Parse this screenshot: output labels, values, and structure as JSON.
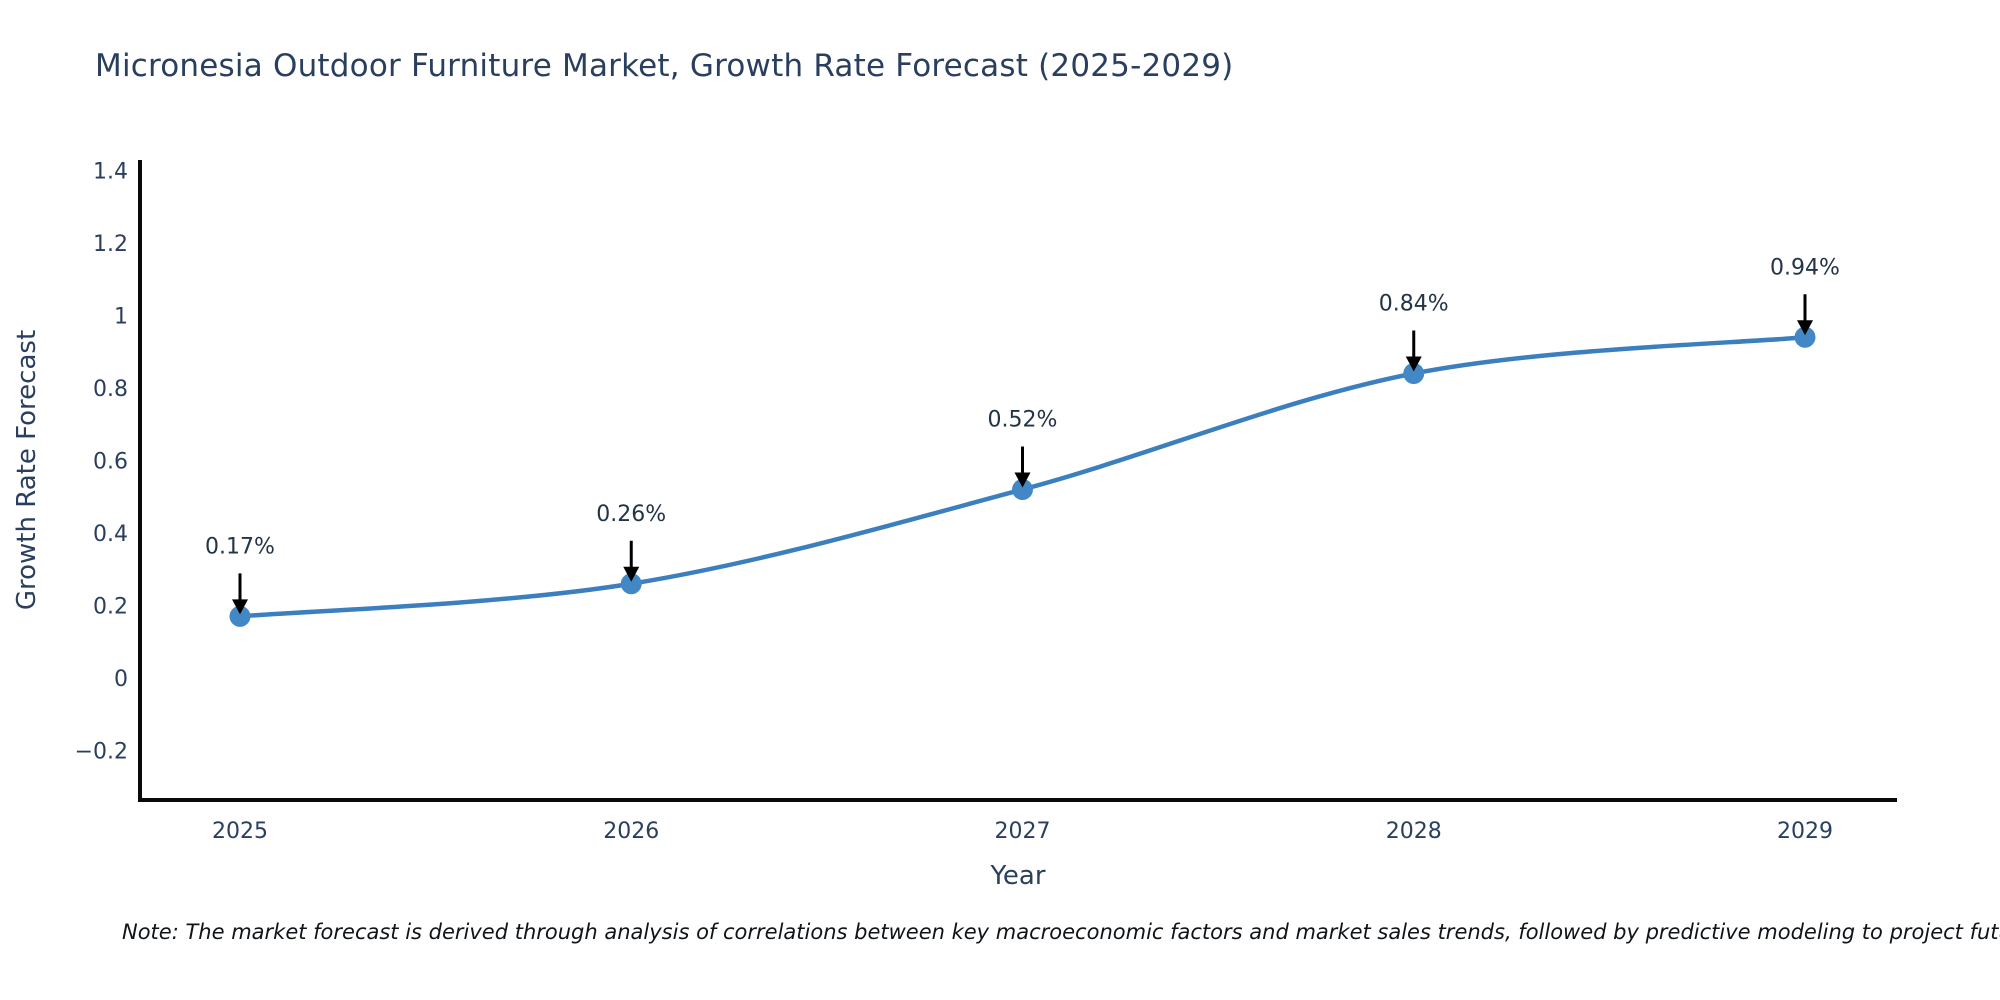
{
  "title": "Micronesia Outdoor Furniture Market, Growth Rate Forecast (2025-2029)",
  "note": "Note: The market forecast is derived through analysis of correlations between key macroeconomic factors and market sales trends, followed by predictive modeling to project future sa",
  "chart_data": {
    "type": "line",
    "title": "Micronesia Outdoor Furniture Market, Growth Rate Forecast (2025-2029)",
    "xlabel": "Year",
    "ylabel": "Growth Rate Forecast",
    "categories": [
      "2025",
      "2026",
      "2027",
      "2028",
      "2029"
    ],
    "series": [
      {
        "name": "Growth Rate Forecast",
        "values": [
          0.17,
          0.26,
          0.52,
          0.84,
          0.94
        ],
        "point_labels": [
          "0.17%",
          "0.26%",
          "0.52%",
          "0.84%",
          "0.94%"
        ]
      }
    ],
    "y_axis": {
      "tick_values": [
        -0.2,
        0,
        0.2,
        0.4,
        0.6,
        0.8,
        1,
        1.2,
        1.4
      ],
      "tick_labels": [
        "−0.2",
        "0",
        "0.2",
        "0.4",
        "0.6",
        "0.8",
        "1",
        "1.2",
        "1.4"
      ],
      "range": [
        -0.34,
        1.43
      ]
    },
    "x_axis": {
      "tick_labels": [
        "2025",
        "2026",
        "2027",
        "2028",
        "2029"
      ]
    },
    "grid": false,
    "legend_position": "none",
    "smooth_curve": true,
    "colors": {
      "line": "#3c7fbe",
      "marker": "#4288c7",
      "axis_line": "#0a0a0a",
      "tick_text": "#2a3f5f",
      "annotation_text": "#233447",
      "annotation_arrow": "#000000"
    }
  }
}
